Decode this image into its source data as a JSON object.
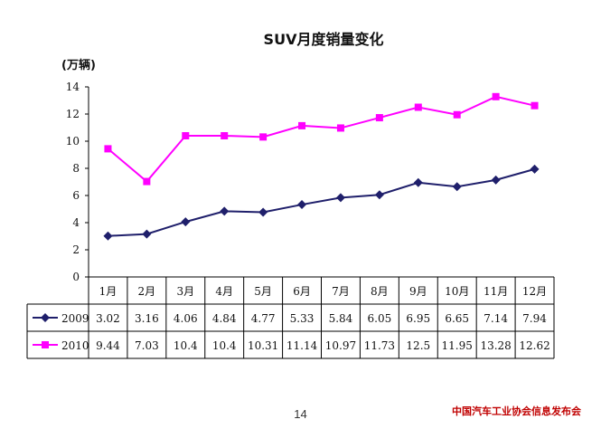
{
  "chart_data": {
    "type": "line",
    "title": "SUV月度销量变化",
    "ylabel": "(万辆)",
    "ylim": [
      0,
      14
    ],
    "yticks": [
      0,
      2,
      4,
      6,
      8,
      10,
      12,
      14
    ],
    "categories": [
      "1月",
      "2月",
      "3月",
      "4月",
      "5月",
      "6月",
      "7月",
      "8月",
      "9月",
      "10月",
      "11月",
      "12月"
    ],
    "series": [
      {
        "name": "2009",
        "color": "#1f1f6b",
        "marker": "diamond",
        "values": [
          3.02,
          3.16,
          4.06,
          4.84,
          4.77,
          5.33,
          5.84,
          6.05,
          6.95,
          6.65,
          7.14,
          7.94
        ],
        "labels": [
          "3.02",
          "3.16",
          "4.06",
          "4.84",
          "4.77",
          "5.33",
          "5.84",
          "6.05",
          "6.95",
          "6.65",
          "7.14",
          "7.94"
        ]
      },
      {
        "name": "2010",
        "color": "#ff00ff",
        "marker": "square",
        "values": [
          9.44,
          7.03,
          10.4,
          10.4,
          10.31,
          11.14,
          10.97,
          11.73,
          12.5,
          11.95,
          13.28,
          12.62
        ],
        "labels": [
          "9.44",
          "7.03",
          "10.4",
          "10.4",
          "10.31",
          "11.14",
          "10.97",
          "11.73",
          "12.5",
          "11.95",
          "13.28",
          "12.62"
        ]
      }
    ],
    "grid": false,
    "legend": "data-table"
  },
  "footer": {
    "page_number": "14",
    "source": "中国汽车工业协会信息发布会"
  }
}
